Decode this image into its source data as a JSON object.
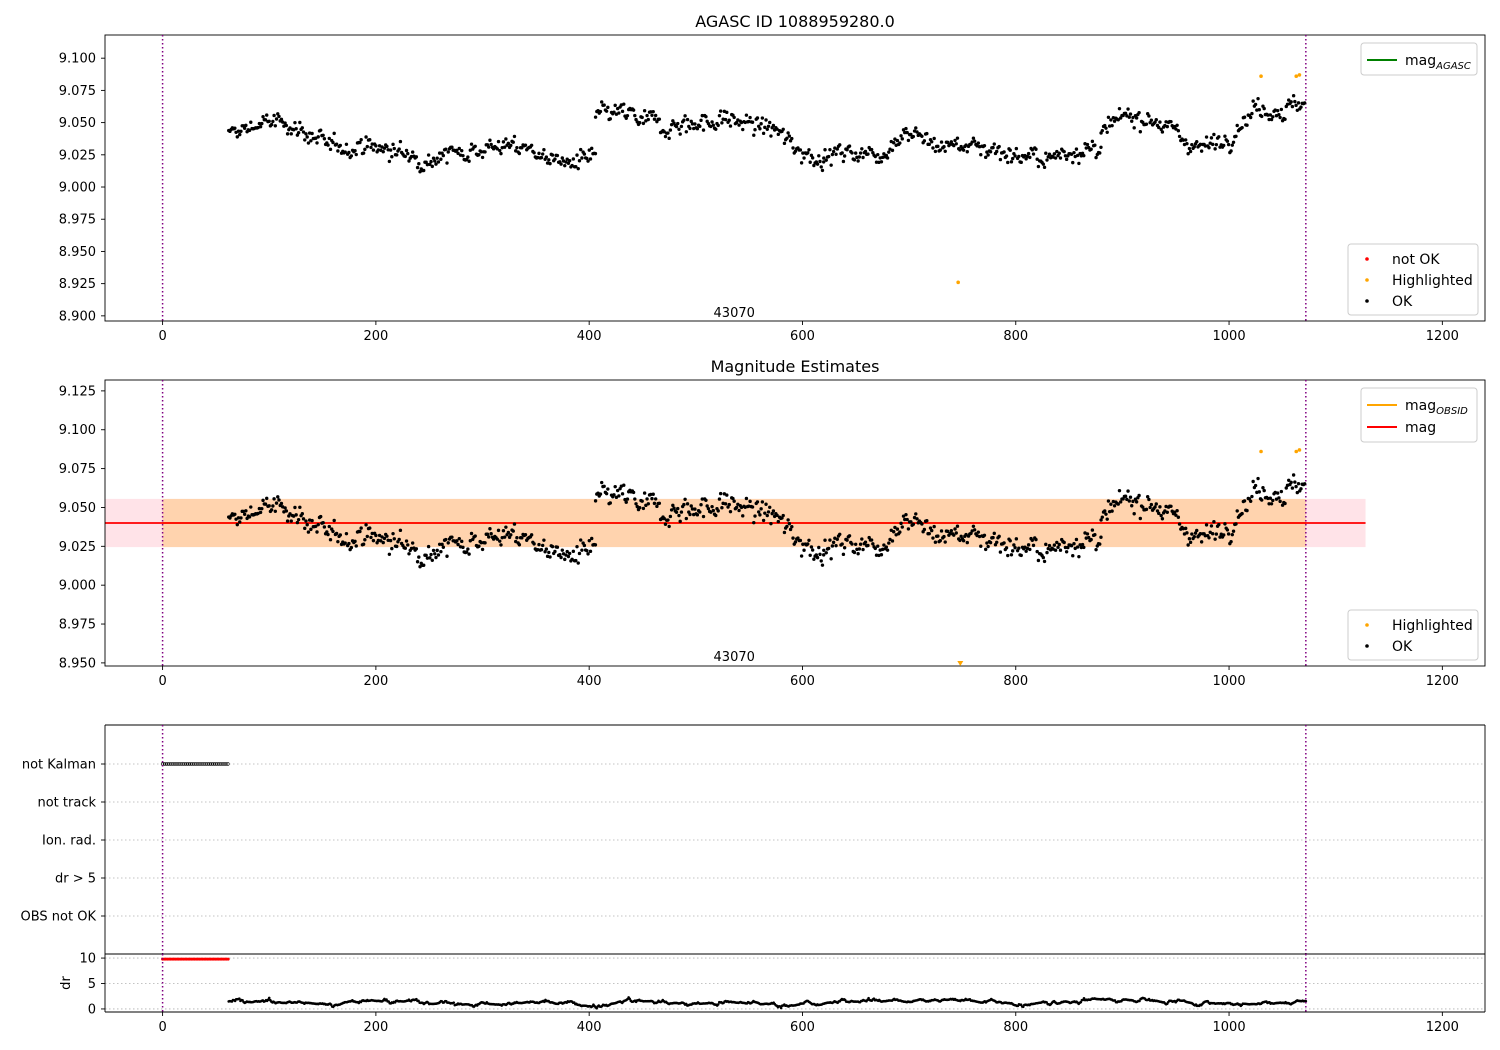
{
  "figure": {
    "panel1_title": "AGASC ID 1088959280.0",
    "panel2_title": "Magnitude Estimates",
    "obsid_label": "43070"
  },
  "chart_data": [
    {
      "type": "scatter",
      "title": "AGASC ID 1088959280.0",
      "xlabel": "",
      "ylabel": "",
      "xlim": [
        -54,
        1240
      ],
      "ylim": [
        8.896,
        9.118
      ],
      "xticks": [
        0,
        200,
        400,
        600,
        800,
        1000,
        1200
      ],
      "yticks": [
        8.9,
        8.925,
        8.95,
        8.975,
        9.0,
        9.025,
        9.05,
        9.075,
        9.1
      ],
      "ytick_labels": [
        "8.900",
        "8.925",
        "8.950",
        "8.975",
        "9.000",
        "9.025",
        "9.050",
        "9.075",
        "9.100"
      ],
      "vlines": [
        0,
        1072
      ],
      "annotation": {
        "text": "43070",
        "x": 536,
        "y": 8.903
      },
      "legend_lines": [
        {
          "label": "mag",
          "sub": "AGASC",
          "color": "#008000"
        }
      ],
      "legend_markers": [
        {
          "label": "not OK",
          "color": "#ff0000"
        },
        {
          "label": "Highlighted",
          "color": "#ffa500"
        },
        {
          "label": "OK",
          "color": "#000000"
        }
      ],
      "series": [
        {
          "name": "OK",
          "color": "#000000",
          "segments": [
            {
              "x": [
                62,
                406
              ],
              "anchors": [
                9.04,
                9.05,
                9.048,
                9.03,
                9.033,
                9.027,
                9.022,
                9.028,
                9.032,
                9.03,
                9.018,
                9.022
              ],
              "noise": 0.009
            },
            {
              "x": [
                406,
                620
              ],
              "anchors": [
                9.055,
                9.057,
                9.05,
                9.048,
                9.05,
                9.052,
                9.05,
                9.044,
                9.03,
                9.022
              ],
              "noise": 0.01
            },
            {
              "x": [
                620,
                880
              ],
              "anchors": [
                9.022,
                9.028,
                9.025,
                9.045,
                9.032,
                9.033,
                9.03,
                9.025,
                9.02,
                9.03,
                9.028
              ],
              "noise": 0.009
            },
            {
              "x": [
                880,
                1072
              ],
              "anchors": [
                9.04,
                9.055,
                9.055,
                9.04,
                9.03,
                9.04,
                9.062,
                9.06,
                9.065
              ],
              "noise": 0.009
            }
          ]
        },
        {
          "name": "Highlighted",
          "color": "#ffa500",
          "points": [
            [
              746,
              8.926
            ],
            [
              1030,
              9.086
            ],
            [
              1063,
              9.086
            ],
            [
              1066,
              9.087
            ]
          ]
        }
      ]
    },
    {
      "type": "scatter",
      "title": "Magnitude Estimates",
      "xlabel": "",
      "ylabel": "",
      "xlim": [
        -54,
        1240
      ],
      "ylim": [
        8.948,
        9.132
      ],
      "xticks": [
        0,
        200,
        400,
        600,
        800,
        1000,
        1200
      ],
      "yticks": [
        8.95,
        8.975,
        9.0,
        9.025,
        9.05,
        9.075,
        9.1,
        9.125
      ],
      "ytick_labels": [
        "8.950",
        "8.975",
        "9.000",
        "9.025",
        "9.050",
        "9.075",
        "9.100",
        "9.125"
      ],
      "vlines": [
        0,
        1072
      ],
      "annotation": {
        "text": "43070",
        "x": 536,
        "y": 8.953
      },
      "legend_lines": [
        {
          "label": "mag",
          "sub": "OBSID",
          "color": "#ffa500"
        },
        {
          "label": "mag",
          "sub": "",
          "color": "#ff0000"
        }
      ],
      "legend_markers": [
        {
          "label": "Highlighted",
          "color": "#ffa500"
        },
        {
          "label": "OK",
          "color": "#000000"
        }
      ],
      "bands": [
        {
          "x": [
            -54,
            1128
          ],
          "y": [
            9.0245,
            9.0555
          ],
          "color": "#ffc0cb",
          "opacity": 0.45
        },
        {
          "x": [
            0,
            1072
          ],
          "y": [
            9.0245,
            9.0555
          ],
          "color": "#ffa500",
          "opacity": 0.25
        }
      ],
      "hlines": [
        {
          "y": 9.04,
          "x": [
            0,
            1072
          ],
          "color": "#ffa500"
        },
        {
          "y": 9.04,
          "x": [
            -54,
            1128
          ],
          "color": "#ff0000"
        }
      ],
      "series": [
        {
          "name": "OK",
          "color": "#000000",
          "same_as_panel": 0
        },
        {
          "name": "Highlighted",
          "color": "#ffa500",
          "points": [
            [
              748,
              8.95
            ],
            [
              1030,
              9.086
            ],
            [
              1063,
              9.086
            ],
            [
              1066,
              9.087
            ]
          ]
        }
      ]
    },
    {
      "type": "scatter",
      "title": "",
      "categories": [
        "not Kalman",
        "not track",
        "Ion. rad.",
        "dr > 5",
        "OBS not OK"
      ],
      "xlim": [
        -54,
        1240
      ],
      "vlines": [
        0,
        1072
      ],
      "flags": [
        {
          "category": "not Kalman",
          "x": [
            0,
            62
          ],
          "color": "#000000"
        }
      ]
    },
    {
      "type": "scatter",
      "title": "",
      "xlabel": "",
      "ylabel": "dr",
      "xlim": [
        -54,
        1240
      ],
      "ylim": [
        -0.6,
        10.8
      ],
      "xticks": [
        0,
        200,
        400,
        600,
        800,
        1000,
        1200
      ],
      "yticks": [
        0,
        5,
        10
      ],
      "ytick_labels": [
        "0",
        "5",
        "10"
      ],
      "vlines": [
        0,
        1072
      ],
      "series": [
        {
          "name": "dr capped",
          "color": "#ff0000",
          "x": [
            0,
            62
          ],
          "value": 9.8
        },
        {
          "name": "dr",
          "color": "#000000",
          "x": [
            62,
            1072
          ],
          "anchors": [
            1.5,
            1.2,
            1.0,
            1.8,
            1.0,
            0.8,
            1.4,
            0.6,
            1.6,
            1.0,
            1.3,
            0.7,
            1.4,
            1.6,
            1.8,
            1.2,
            1.1,
            2.0,
            1.6,
            1.2,
            0.9,
            1.5
          ],
          "noise": 0.5
        }
      ]
    }
  ]
}
